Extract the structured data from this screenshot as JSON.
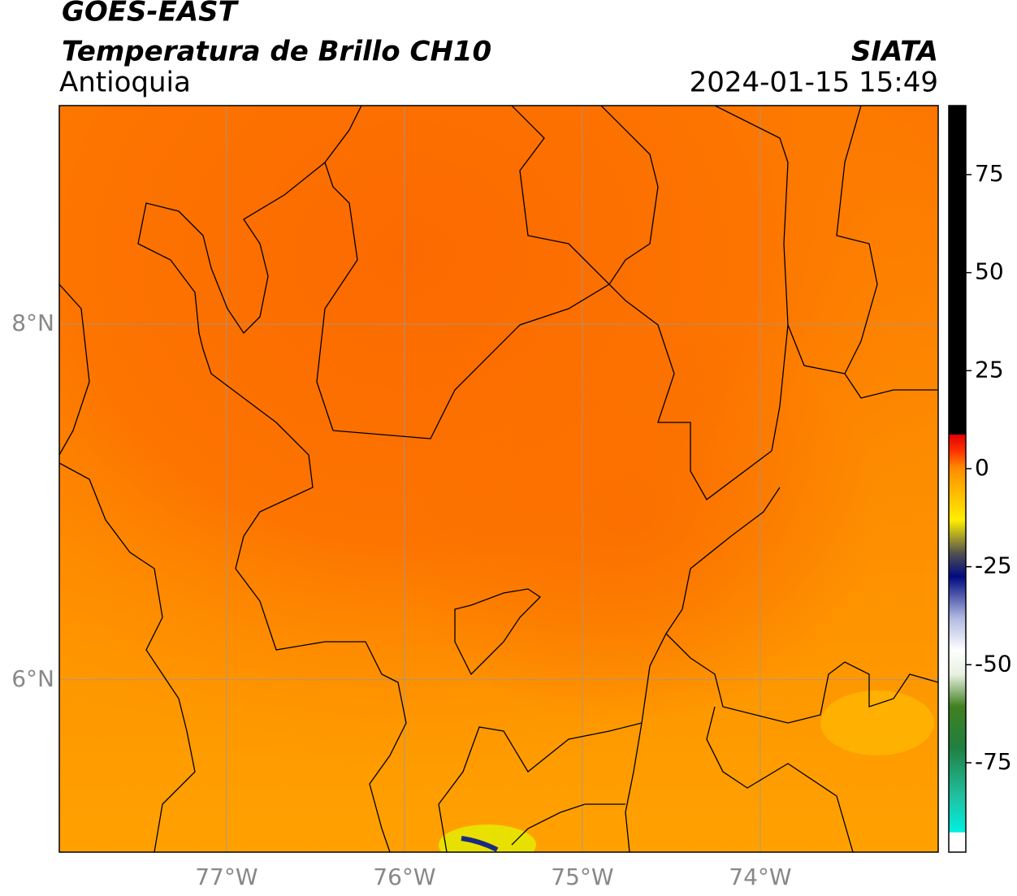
{
  "title": "GOES-EAST",
  "subtitle": "Temperatura de Brillo CH10",
  "region": "Antioquia",
  "source": "SIATA",
  "datetime": "2024-01-15 15:49",
  "map": {
    "lonlim": [
      -77.94,
      -73.0
    ],
    "latlim": [
      5.03,
      9.23
    ],
    "lon_ticks": [
      {
        "value": -77,
        "label": "77°W"
      },
      {
        "value": -76,
        "label": "76°W"
      },
      {
        "value": -75,
        "label": "75°W"
      },
      {
        "value": -74,
        "label": "74°W"
      }
    ],
    "lat_ticks": [
      {
        "value": 8,
        "label": "8°N"
      },
      {
        "value": 6,
        "label": "6°N"
      }
    ],
    "grid": true
  },
  "colorbar": {
    "lim": [
      -97.8,
      92.6
    ],
    "ticks": [
      75,
      50,
      25,
      0,
      -25,
      -50,
      -75
    ]
  }
}
